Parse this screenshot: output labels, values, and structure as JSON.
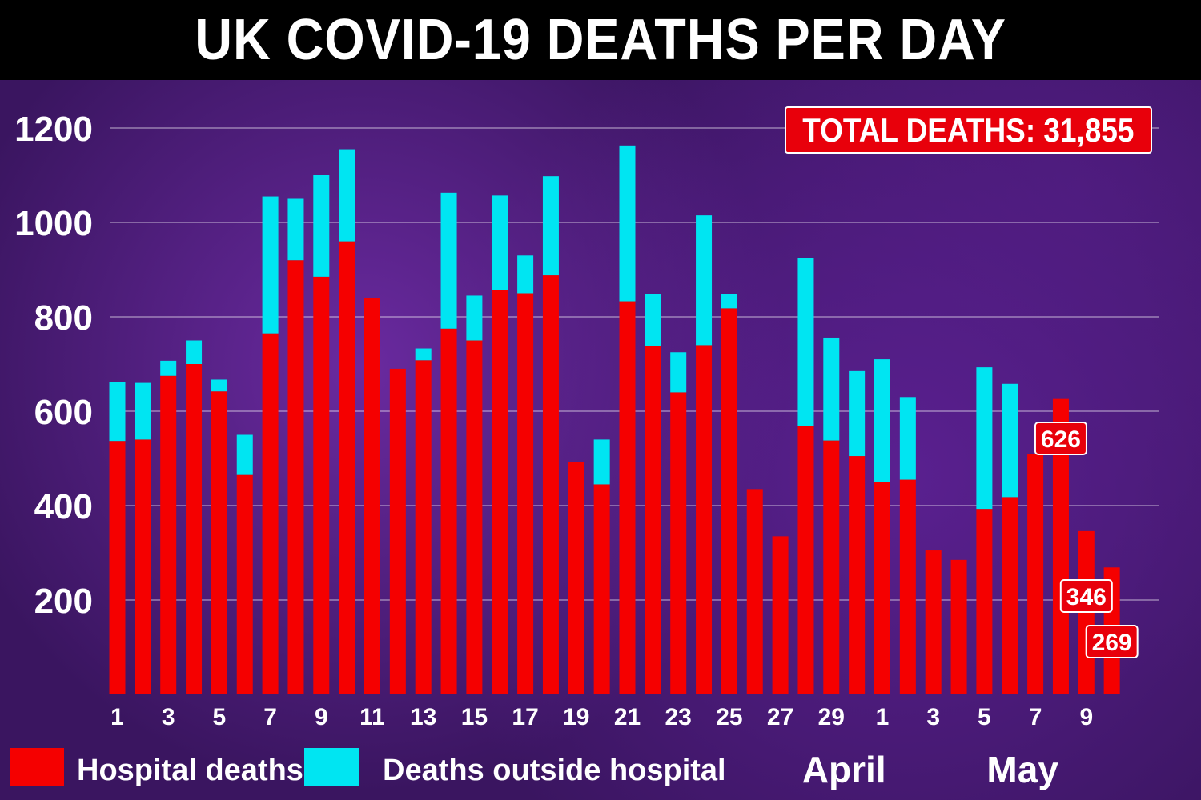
{
  "title": "UK COVID-19 DEATHS PER DAY",
  "total_label": "TOTAL DEATHS: 31,855",
  "colors": {
    "hospital": "#f50000",
    "outside": "#00e5f2"
  },
  "chart_data": {
    "type": "bar",
    "stacked": true,
    "title": "UK COVID-19 DEATHS PER DAY",
    "ylim": [
      0,
      1200
    ],
    "yticks": [
      200,
      400,
      600,
      800,
      1000,
      1200
    ],
    "grid": true,
    "legend_placement": "bottom-left",
    "categories": [
      "1",
      "2",
      "3",
      "4",
      "5",
      "6",
      "7",
      "8",
      "9",
      "10",
      "11",
      "12",
      "13",
      "14",
      "15",
      "16",
      "17",
      "18",
      "19",
      "20",
      "21",
      "22",
      "23",
      "24",
      "25",
      "26",
      "27",
      "28",
      "29",
      "30",
      "1",
      "2",
      "3",
      "4",
      "5",
      "6",
      "7",
      "8",
      "9",
      "10"
    ],
    "x_tick_labels": [
      {
        "index": 0,
        "label": "1"
      },
      {
        "index": 2,
        "label": "3"
      },
      {
        "index": 4,
        "label": "5"
      },
      {
        "index": 6,
        "label": "7"
      },
      {
        "index": 8,
        "label": "9"
      },
      {
        "index": 10,
        "label": "11"
      },
      {
        "index": 12,
        "label": "13"
      },
      {
        "index": 14,
        "label": "15"
      },
      {
        "index": 16,
        "label": "17"
      },
      {
        "index": 18,
        "label": "19"
      },
      {
        "index": 20,
        "label": "21"
      },
      {
        "index": 22,
        "label": "23"
      },
      {
        "index": 24,
        "label": "25"
      },
      {
        "index": 26,
        "label": "27"
      },
      {
        "index": 28,
        "label": "29"
      },
      {
        "index": 30,
        "label": "1"
      },
      {
        "index": 32,
        "label": "3"
      },
      {
        "index": 34,
        "label": "5"
      },
      {
        "index": 36,
        "label": "7"
      },
      {
        "index": 38,
        "label": "9"
      }
    ],
    "months": [
      {
        "label": "April",
        "index": 28.5
      },
      {
        "label": "May",
        "index": 35.5
      }
    ],
    "series": [
      {
        "name": "Hospital deaths",
        "values": [
          537,
          540,
          675,
          700,
          642,
          465,
          765,
          920,
          885,
          960,
          840,
          690,
          708,
          775,
          750,
          857,
          850,
          888,
          492,
          445,
          833,
          738,
          640,
          740,
          818,
          435,
          335,
          569,
          538,
          505,
          450,
          455,
          305,
          285,
          393,
          418,
          510,
          626,
          346,
          269
        ]
      },
      {
        "name": "Deaths outside hospital",
        "values": [
          125,
          120,
          32,
          50,
          25,
          85,
          290,
          130,
          215,
          195,
          0,
          0,
          25,
          288,
          95,
          200,
          80,
          210,
          0,
          95,
          330,
          110,
          85,
          275,
          30,
          0,
          0,
          355,
          218,
          180,
          260,
          175,
          0,
          0,
          300,
          240,
          0,
          0,
          0,
          0
        ]
      }
    ],
    "callouts": [
      {
        "index": 37,
        "label": "626"
      },
      {
        "index": 38,
        "label": "346"
      },
      {
        "index": 39,
        "label": "269"
      }
    ]
  }
}
